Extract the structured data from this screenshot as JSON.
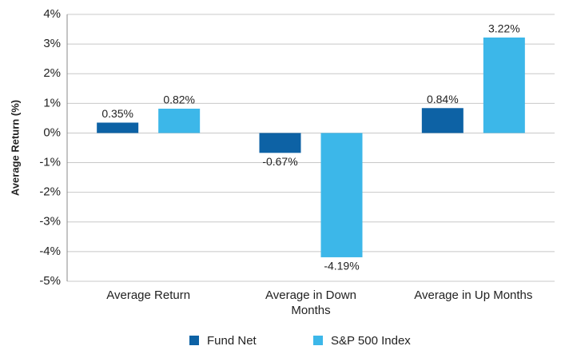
{
  "chart_data": {
    "type": "bar",
    "y_label": "Average Return (%)",
    "categories": [
      "Average Return",
      "Average in Down Months",
      "Average in Up Months"
    ],
    "series": [
      {
        "name": "Fund Net",
        "color": "#0d62a5",
        "values": [
          0.35,
          -0.67,
          0.84
        ],
        "value_labels": [
          "0.35%",
          "-0.67%",
          "0.84%"
        ]
      },
      {
        "name": "S&P 500 Index",
        "color": "#3cb7e9",
        "values": [
          0.82,
          -4.19,
          3.22
        ],
        "value_labels": [
          "0.82%",
          "-4.19%",
          "3.22%"
        ]
      }
    ],
    "ylim": [
      -5,
      4
    ],
    "yticks": [
      {
        "value": -5,
        "label": "-5%"
      },
      {
        "value": -4,
        "label": "-4%"
      },
      {
        "value": -3,
        "label": "-3%"
      },
      {
        "value": -2,
        "label": "-2%"
      },
      {
        "value": -1,
        "label": "-1%"
      },
      {
        "value": 0,
        "label": "0%"
      },
      {
        "value": 1,
        "label": "1%"
      },
      {
        "value": 2,
        "label": "2%"
      },
      {
        "value": 3,
        "label": "3%"
      },
      {
        "value": 4,
        "label": "4%"
      }
    ],
    "grid": true,
    "legend": "bottom"
  }
}
